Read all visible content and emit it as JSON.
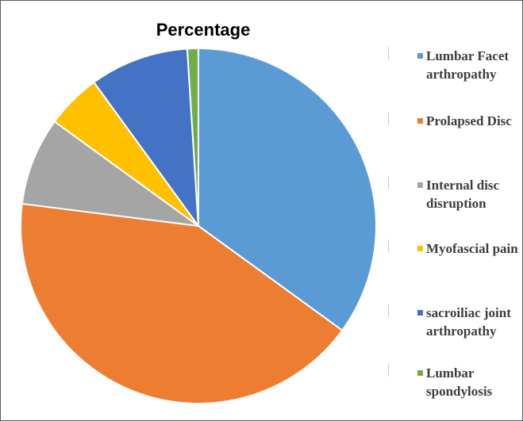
{
  "chart_data": {
    "type": "pie",
    "title": "Percentage",
    "series": [
      {
        "name": "Lumbar Facet arthropathy",
        "value": 35,
        "color": "#5b9bd5"
      },
      {
        "name": "Prolapsed Disc",
        "value": 42,
        "color": "#ed7d31"
      },
      {
        "name": "Internal disc disruption",
        "value": 8,
        "color": "#a5a5a5"
      },
      {
        "name": "Myofascial pain",
        "value": 5,
        "color": "#ffc000"
      },
      {
        "name": "sacroiliac joint arthropathy",
        "value": 9,
        "color": "#4472c4"
      },
      {
        "name": "Lumbar spondylosis",
        "value": 1,
        "color": "#70ad47"
      }
    ],
    "legend_position": "right",
    "start_angle": "top, clockwise"
  }
}
